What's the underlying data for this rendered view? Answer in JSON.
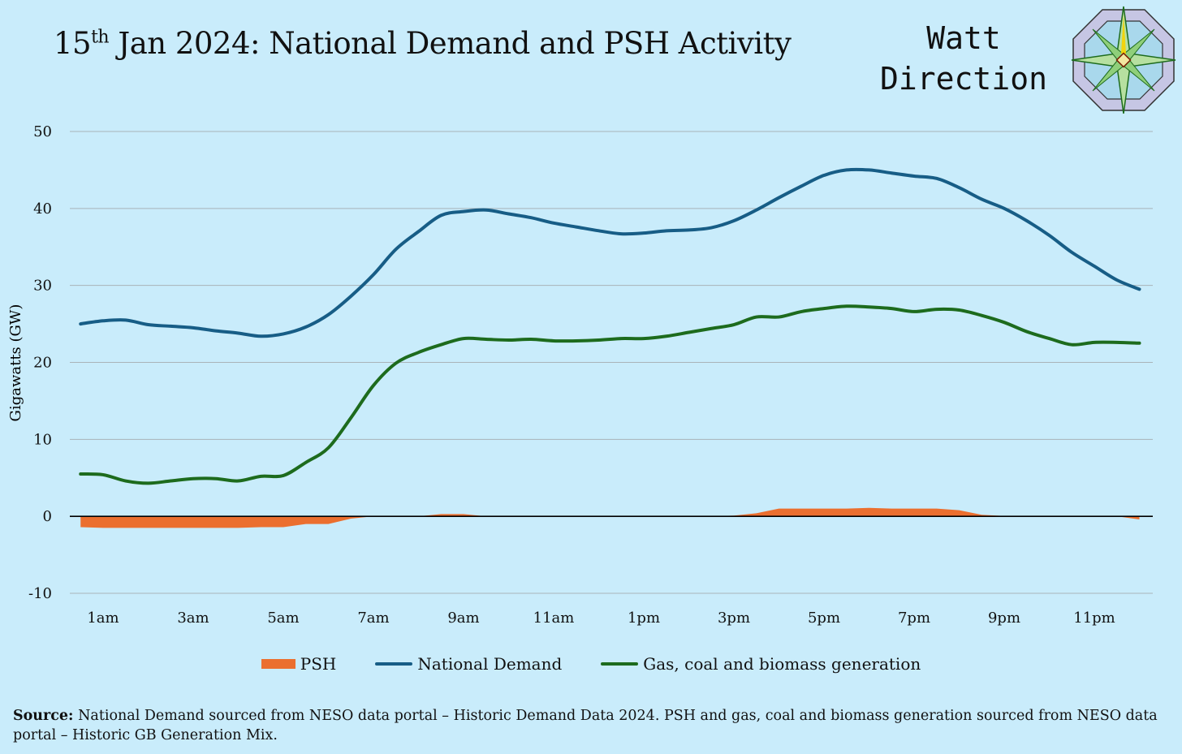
{
  "header": {
    "title_day": "15",
    "title_sup": "th",
    "title_rest": " Jan 2024: National Demand and PSH Activity"
  },
  "brand": {
    "line1": "Watt",
    "line2": "Direction"
  },
  "source": {
    "label": "Source:",
    "text": " National Demand sourced from NESO data portal – Historic Demand Data 2024. PSH and gas, coal and biomass generation sourced from NESO data portal – Historic GB Generation Mix."
  },
  "chart_data": {
    "type": "line",
    "title": "15th Jan 2024: National Demand and PSH Activity",
    "xlabel": "",
    "ylabel": "Gigawatts (GW)",
    "ylim": [
      -10,
      50
    ],
    "yticks": [
      "-10",
      "0",
      "10",
      "20",
      "30",
      "40",
      "50"
    ],
    "xticks": [
      {
        "hour": 1,
        "label": "1am"
      },
      {
        "hour": 3,
        "label": "3am"
      },
      {
        "hour": 5,
        "label": "5am"
      },
      {
        "hour": 7,
        "label": "7am"
      },
      {
        "hour": 9,
        "label": "9am"
      },
      {
        "hour": 11,
        "label": "11am"
      },
      {
        "hour": 13,
        "label": "1pm"
      },
      {
        "hour": 15,
        "label": "3pm"
      },
      {
        "hour": 17,
        "label": "5pm"
      },
      {
        "hour": 19,
        "label": "7pm"
      },
      {
        "hour": 21,
        "label": "9pm"
      },
      {
        "hour": 23,
        "label": "11pm"
      }
    ],
    "xlim": [
      0,
      24.6
    ],
    "grid": true,
    "legend_position": "bottom",
    "x_hours": [
      0.5,
      1,
      1.5,
      2,
      2.5,
      3,
      3.5,
      4,
      4.5,
      5,
      5.5,
      6,
      6.5,
      7,
      7.5,
      8,
      8.5,
      9,
      9.5,
      10,
      10.5,
      11,
      11.5,
      12,
      12.5,
      13,
      13.5,
      14,
      14.5,
      15,
      15.5,
      16,
      16.5,
      17,
      17.5,
      18,
      18.5,
      19,
      19.5,
      20,
      20.5,
      21,
      21.5,
      22,
      22.5,
      23,
      23.5,
      24
    ],
    "series": [
      {
        "name": "PSH",
        "kind": "area",
        "color": "#eb6f2f",
        "values": [
          -1.4,
          -1.5,
          -1.5,
          -1.5,
          -1.5,
          -1.5,
          -1.5,
          -1.5,
          -1.4,
          -1.4,
          -1.0,
          -1.0,
          -0.3,
          0,
          0,
          0,
          0.3,
          0.3,
          0,
          0,
          0,
          0,
          0,
          0,
          0,
          0,
          0,
          0,
          0,
          0.1,
          0.4,
          1.0,
          1.0,
          1.0,
          1.0,
          1.1,
          1.0,
          1.0,
          1.0,
          0.8,
          0.2,
          0.05,
          0,
          0,
          0,
          0,
          0,
          -0.4
        ]
      },
      {
        "name": "National Demand",
        "kind": "line",
        "color": "#175d86",
        "values": [
          25.0,
          25.4,
          25.5,
          24.9,
          24.7,
          24.5,
          24.1,
          23.8,
          23.4,
          23.7,
          24.6,
          26.2,
          28.6,
          31.4,
          34.7,
          37.0,
          39.1,
          39.6,
          39.8,
          39.3,
          38.8,
          38.1,
          37.6,
          37.1,
          36.7,
          36.8,
          37.1,
          37.2,
          37.5,
          38.4,
          39.8,
          41.4,
          42.9,
          44.3,
          45.0,
          45.0,
          44.6,
          44.2,
          43.9,
          42.7,
          41.2,
          40.0,
          38.4,
          36.5,
          34.3,
          32.5,
          30.7,
          29.5
        ]
      },
      {
        "name": "Gas, coal and biomass generation",
        "kind": "line",
        "color": "#1d6b1d",
        "values": [
          5.5,
          5.4,
          4.6,
          4.3,
          4.6,
          4.9,
          4.9,
          4.6,
          5.2,
          5.3,
          7.0,
          8.9,
          12.8,
          17.0,
          19.9,
          21.3,
          22.3,
          23.1,
          23.0,
          22.9,
          23.0,
          22.8,
          22.8,
          22.9,
          23.1,
          23.1,
          23.4,
          23.9,
          24.4,
          24.9,
          25.9,
          25.9,
          26.6,
          27.0,
          27.3,
          27.2,
          27.0,
          26.6,
          26.9,
          26.8,
          26.1,
          25.2,
          24.0,
          23.1,
          22.3,
          22.6,
          22.6,
          22.5
        ]
      }
    ]
  }
}
